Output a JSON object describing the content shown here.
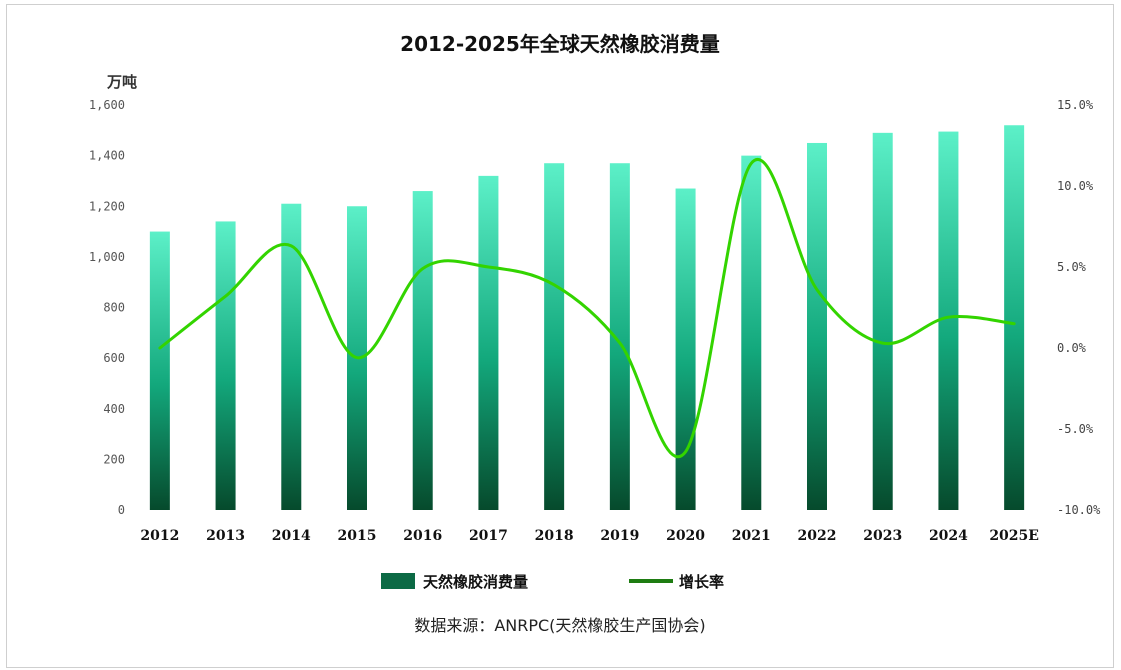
{
  "chart_data": {
    "type": "bar+line",
    "title": "2012-2025年全球天然橡胶消费量",
    "y_left_unit": "万吨",
    "categories": [
      "2012",
      "2013",
      "2014",
      "2015",
      "2016",
      "2017",
      "2018",
      "2019",
      "2020",
      "2021",
      "2022",
      "2023",
      "2024",
      "2025E"
    ],
    "series": [
      {
        "name": "天然橡胶消费量",
        "type": "bar",
        "axis": "left",
        "values": [
          1100,
          1140,
          1210,
          1200,
          1260,
          1320,
          1370,
          1370,
          1270,
          1400,
          1450,
          1490,
          1495,
          1520
        ]
      },
      {
        "name": "增长率",
        "type": "line",
        "axis": "right",
        "values": [
          0.0,
          3.2,
          6.3,
          -0.6,
          4.9,
          5.0,
          3.9,
          0.3,
          -6.4,
          11.4,
          3.6,
          0.3,
          1.9,
          1.5
        ]
      }
    ],
    "y_left": {
      "min": 0,
      "max": 1600,
      "ticks": [
        "0",
        "200",
        "400",
        "600",
        "800",
        "1,000",
        "1,200",
        "1,400",
        "1,600"
      ]
    },
    "y_right": {
      "min": -10,
      "max": 15,
      "ticks": [
        "-10.0%",
        "-5.0%",
        "0.0%",
        "5.0%",
        "10.0%",
        "15.0%"
      ]
    },
    "grid": false,
    "legend_position": "bottom",
    "source": "数据来源：ANRPC(天然橡胶生产国协会)",
    "colors": {
      "bar": "#13a87c",
      "line": "#33d400"
    }
  }
}
